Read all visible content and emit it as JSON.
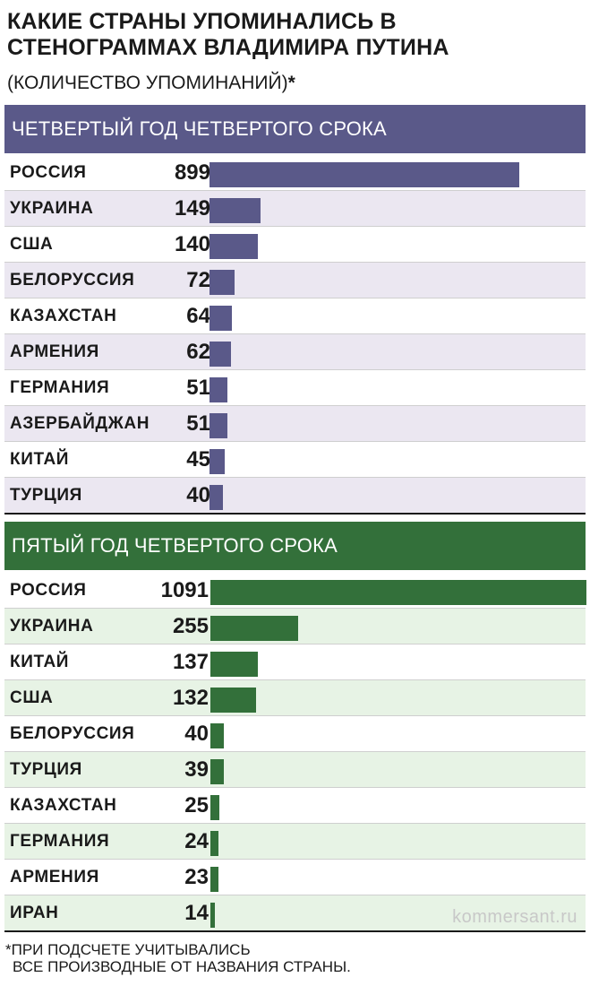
{
  "title": "КАКИЕ СТРАНЫ УПОМИНАЛИСЬ В СТЕНОГРАММАХ ВЛАДИМИРА ПУТИНА",
  "subtitle": "(КОЛИЧЕСТВО УПОМИНАНИЙ)",
  "subtitle_mark": "*",
  "watermark": "kommersant.ru",
  "footnote": {
    "line1": "*ПРИ ПОДСЧЕТЕ УЧИТЫВАЛИСЬ",
    "line2": "ВСЕ ПРОИЗВОДНЫЕ ОТ НАЗВАНИЯ СТРАНЫ."
  },
  "chart_data": [
    {
      "type": "bar",
      "orientation": "horizontal",
      "title": "ЧЕТВЕРТЫЙ ГОД ЧЕТВЕРТОГО СРОКА",
      "color": "#5a5989",
      "row_alt_color": "#ebe7f1",
      "categories": [
        "РОССИЯ",
        "УКРАИНА",
        "США",
        "БЕЛОРУССИЯ",
        "КАЗАХСТАН",
        "АРМЕНИЯ",
        "ГЕРМАНИЯ",
        "АЗЕРБАЙДЖАН",
        "КИТАЙ",
        "ТУРЦИЯ"
      ],
      "values": [
        899,
        149,
        140,
        72,
        64,
        62,
        51,
        51,
        45,
        40
      ],
      "xlim": [
        0,
        1091
      ],
      "grid": false
    },
    {
      "type": "bar",
      "orientation": "horizontal",
      "title": "ПЯТЫЙ ГОД ЧЕТВЕРТОГО СРОКА",
      "color": "#33703a",
      "row_alt_color": "#e7f3e5",
      "categories": [
        "РОССИЯ",
        "УКРАИНА",
        "КИТАЙ",
        "США",
        "БЕЛОРУССИЯ",
        "ТУРЦИЯ",
        "КАЗАХСТАН",
        "ГЕРМАНИЯ",
        "АРМЕНИЯ",
        "ИРАН"
      ],
      "values": [
        1091,
        255,
        137,
        132,
        40,
        39,
        25,
        24,
        23,
        14
      ],
      "xlim": [
        0,
        1091
      ],
      "grid": false
    }
  ]
}
